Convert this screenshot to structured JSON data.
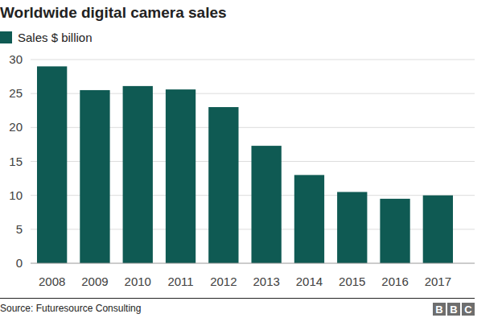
{
  "chart_data": {
    "type": "bar",
    "title": "Worldwide digital camera sales",
    "legend_label": "Sales $ billion",
    "categories": [
      "2008",
      "2009",
      "2010",
      "2011",
      "2012",
      "2013",
      "2014",
      "2015",
      "2016",
      "2017"
    ],
    "values": [
      29,
      25.5,
      26.1,
      25.6,
      23,
      17.3,
      13,
      10.5,
      9.5,
      10
    ],
    "color": "#0f5a53",
    "ylim": [
      0,
      30
    ],
    "yticks": [
      0,
      5,
      10,
      15,
      20,
      25,
      30
    ],
    "grid": true,
    "source": "Source: Futuresource Consulting",
    "logo": "BBC"
  }
}
